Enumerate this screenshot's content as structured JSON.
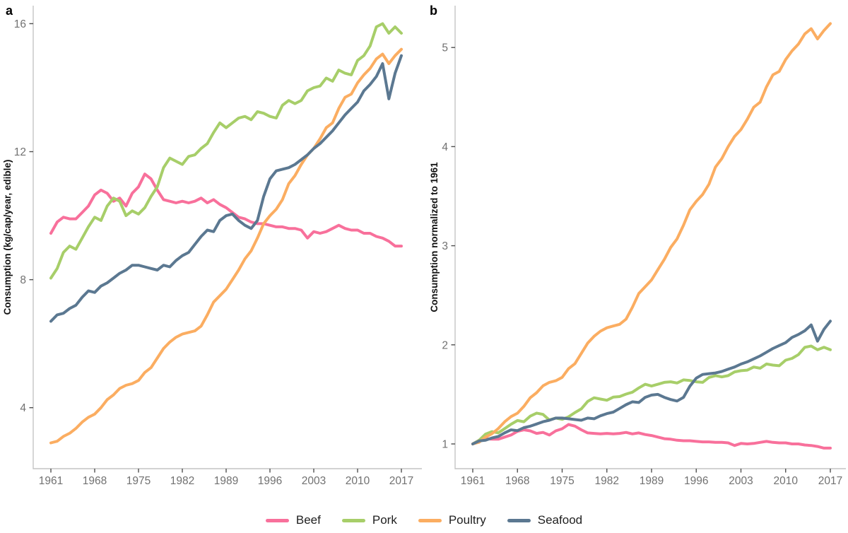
{
  "chart_data": [
    {
      "type": "line",
      "panel_label": "a",
      "title": "",
      "xlabel": "",
      "ylabel": "Consumption (kg/cap/year, edible)",
      "x": [
        1961,
        1962,
        1963,
        1964,
        1965,
        1966,
        1967,
        1968,
        1969,
        1970,
        1971,
        1972,
        1973,
        1974,
        1975,
        1976,
        1977,
        1978,
        1979,
        1980,
        1981,
        1982,
        1983,
        1984,
        1985,
        1986,
        1987,
        1988,
        1989,
        1990,
        1991,
        1992,
        1993,
        1994,
        1995,
        1996,
        1997,
        1998,
        1999,
        2000,
        2001,
        2002,
        2003,
        2004,
        2005,
        2006,
        2007,
        2008,
        2009,
        2010,
        2011,
        2012,
        2013,
        2014,
        2015,
        2016,
        2017
      ],
      "x_ticks": [
        1961,
        1968,
        1975,
        1982,
        1989,
        1996,
        2003,
        2010,
        2017
      ],
      "y_ticks": [
        4,
        8,
        12,
        16
      ],
      "ylim": [
        2.0,
        16.6
      ],
      "grid": false,
      "legend_position": "bottom",
      "series": [
        {
          "name": "Beef",
          "color": "#F8709B",
          "values": [
            9.45,
            9.8,
            9.95,
            9.9,
            9.9,
            10.1,
            10.3,
            10.65,
            10.8,
            10.7,
            10.45,
            10.55,
            10.3,
            10.7,
            10.9,
            11.3,
            11.15,
            10.8,
            10.5,
            10.45,
            10.4,
            10.45,
            10.4,
            10.45,
            10.55,
            10.4,
            10.5,
            10.35,
            10.25,
            10.1,
            9.95,
            9.9,
            9.8,
            9.75,
            9.75,
            9.7,
            9.65,
            9.65,
            9.6,
            9.6,
            9.55,
            9.3,
            9.5,
            9.45,
            9.5,
            9.6,
            9.7,
            9.6,
            9.55,
            9.55,
            9.45,
            9.45,
            9.35,
            9.3,
            9.2,
            9.05,
            9.05
          ]
        },
        {
          "name": "Pork",
          "color": "#A7CE69",
          "values": [
            8.05,
            8.35,
            8.85,
            9.05,
            8.95,
            9.3,
            9.65,
            9.95,
            9.85,
            10.3,
            10.55,
            10.45,
            10.0,
            10.15,
            10.05,
            10.25,
            10.6,
            10.9,
            11.5,
            11.8,
            11.7,
            11.6,
            11.85,
            11.9,
            12.1,
            12.25,
            12.6,
            12.9,
            12.75,
            12.9,
            13.05,
            13.1,
            13.0,
            13.25,
            13.2,
            13.1,
            13.05,
            13.45,
            13.6,
            13.5,
            13.6,
            13.9,
            14.0,
            14.05,
            14.3,
            14.2,
            14.55,
            14.45,
            14.4,
            14.85,
            15.0,
            15.3,
            15.9,
            16.0,
            15.7,
            15.9,
            15.7
          ]
        },
        {
          "name": "Poultry",
          "color": "#FBAD61",
          "values": [
            2.9,
            2.95,
            3.1,
            3.2,
            3.35,
            3.55,
            3.7,
            3.8,
            4.0,
            4.25,
            4.4,
            4.6,
            4.7,
            4.75,
            4.85,
            5.1,
            5.25,
            5.55,
            5.85,
            6.05,
            6.2,
            6.3,
            6.35,
            6.4,
            6.55,
            6.9,
            7.3,
            7.5,
            7.7,
            8.0,
            8.3,
            8.65,
            8.9,
            9.3,
            9.75,
            10.0,
            10.2,
            10.5,
            11.0,
            11.25,
            11.6,
            11.9,
            12.1,
            12.4,
            12.75,
            12.9,
            13.35,
            13.7,
            13.8,
            14.15,
            14.4,
            14.6,
            14.9,
            15.05,
            14.75,
            15.0,
            15.2
          ]
        },
        {
          "name": "Seafood",
          "color": "#5B7891",
          "values": [
            6.7,
            6.9,
            6.95,
            7.1,
            7.2,
            7.45,
            7.65,
            7.6,
            7.8,
            7.9,
            8.05,
            8.2,
            8.3,
            8.45,
            8.45,
            8.4,
            8.35,
            8.3,
            8.45,
            8.4,
            8.6,
            8.75,
            8.85,
            9.1,
            9.35,
            9.55,
            9.5,
            9.85,
            10.0,
            10.05,
            9.85,
            9.7,
            9.6,
            9.85,
            10.6,
            11.15,
            11.4,
            11.45,
            11.5,
            11.6,
            11.75,
            11.9,
            12.1,
            12.25,
            12.45,
            12.65,
            12.9,
            13.15,
            13.35,
            13.55,
            13.9,
            14.1,
            14.35,
            14.75,
            13.65,
            14.45,
            15.0
          ]
        }
      ]
    },
    {
      "type": "line",
      "panel_label": "b",
      "title": "",
      "xlabel": "",
      "ylabel": "Consumption normalized to 1961",
      "x": [
        1961,
        1962,
        1963,
        1964,
        1965,
        1966,
        1967,
        1968,
        1969,
        1970,
        1971,
        1972,
        1973,
        1974,
        1975,
        1976,
        1977,
        1978,
        1979,
        1980,
        1981,
        1982,
        1983,
        1984,
        1985,
        1986,
        1987,
        1988,
        1989,
        1990,
        1991,
        1992,
        1993,
        1994,
        1995,
        1996,
        1997,
        1998,
        1999,
        2000,
        2001,
        2002,
        2003,
        2004,
        2005,
        2006,
        2007,
        2008,
        2009,
        2010,
        2011,
        2012,
        2013,
        2014,
        2015,
        2016,
        2017
      ],
      "x_ticks": [
        1961,
        1968,
        1975,
        1982,
        1989,
        1996,
        2003,
        2010,
        2017
      ],
      "y_ticks": [
        1,
        2,
        3,
        4,
        5
      ],
      "ylim": [
        0.75,
        5.45
      ],
      "grid": false,
      "legend_position": "bottom",
      "series": [
        {
          "name": "Beef",
          "color": "#F8709B",
          "values": [
            1.0,
            1.037,
            1.053,
            1.048,
            1.048,
            1.069,
            1.09,
            1.127,
            1.143,
            1.132,
            1.106,
            1.116,
            1.09,
            1.132,
            1.153,
            1.196,
            1.18,
            1.143,
            1.111,
            1.106,
            1.101,
            1.106,
            1.101,
            1.106,
            1.116,
            1.101,
            1.111,
            1.095,
            1.085,
            1.069,
            1.053,
            1.048,
            1.037,
            1.032,
            1.032,
            1.026,
            1.021,
            1.021,
            1.016,
            1.016,
            1.011,
            0.984,
            1.005,
            1.0,
            1.005,
            1.016,
            1.026,
            1.016,
            1.011,
            1.011,
            1.0,
            1.0,
            0.989,
            0.984,
            0.974,
            0.958,
            0.958
          ]
        },
        {
          "name": "Pork",
          "color": "#A7CE69",
          "values": [
            1.0,
            1.037,
            1.099,
            1.124,
            1.112,
            1.155,
            1.199,
            1.236,
            1.224,
            1.28,
            1.311,
            1.298,
            1.242,
            1.261,
            1.248,
            1.273,
            1.317,
            1.354,
            1.429,
            1.466,
            1.453,
            1.441,
            1.472,
            1.478,
            1.503,
            1.522,
            1.565,
            1.602,
            1.584,
            1.602,
            1.621,
            1.627,
            1.615,
            1.646,
            1.64,
            1.627,
            1.621,
            1.671,
            1.689,
            1.677,
            1.689,
            1.727,
            1.739,
            1.745,
            1.776,
            1.764,
            1.807,
            1.795,
            1.789,
            1.845,
            1.863,
            1.901,
            1.975,
            1.988,
            1.95,
            1.975,
            1.95
          ]
        },
        {
          "name": "Poultry",
          "color": "#FBAD61",
          "values": [
            1.0,
            1.017,
            1.069,
            1.103,
            1.155,
            1.224,
            1.276,
            1.31,
            1.379,
            1.466,
            1.517,
            1.586,
            1.621,
            1.638,
            1.672,
            1.759,
            1.81,
            1.914,
            2.017,
            2.086,
            2.138,
            2.172,
            2.19,
            2.207,
            2.259,
            2.379,
            2.517,
            2.586,
            2.655,
            2.759,
            2.862,
            2.983,
            3.069,
            3.207,
            3.362,
            3.448,
            3.517,
            3.621,
            3.793,
            3.879,
            4.0,
            4.103,
            4.172,
            4.276,
            4.397,
            4.448,
            4.603,
            4.724,
            4.759,
            4.879,
            4.966,
            5.034,
            5.138,
            5.19,
            5.086,
            5.172,
            5.241
          ]
        },
        {
          "name": "Seafood",
          "color": "#5B7891",
          "values": [
            1.0,
            1.03,
            1.037,
            1.06,
            1.075,
            1.112,
            1.142,
            1.134,
            1.164,
            1.179,
            1.201,
            1.224,
            1.239,
            1.261,
            1.261,
            1.254,
            1.246,
            1.239,
            1.261,
            1.254,
            1.284,
            1.306,
            1.321,
            1.358,
            1.396,
            1.425,
            1.418,
            1.47,
            1.493,
            1.5,
            1.47,
            1.448,
            1.433,
            1.47,
            1.582,
            1.664,
            1.701,
            1.709,
            1.716,
            1.731,
            1.754,
            1.776,
            1.806,
            1.828,
            1.858,
            1.888,
            1.925,
            1.963,
            1.993,
            2.022,
            2.075,
            2.104,
            2.142,
            2.201,
            2.037,
            2.157,
            2.239
          ]
        }
      ]
    }
  ],
  "legend": {
    "position": "bottom",
    "items": [
      {
        "label": "Beef",
        "color": "#F8709B"
      },
      {
        "label": "Pork",
        "color": "#A7CE69"
      },
      {
        "label": "Poultry",
        "color": "#FBAD61"
      },
      {
        "label": "Seafood",
        "color": "#5B7891"
      }
    ]
  },
  "style": {
    "background": "#FFFFFF",
    "axis_line_color": "#C4C4C4",
    "tick_mark_color": "#4F4F4F",
    "tick_label_color": "#717171",
    "axis_title_color": "#111111",
    "panel_label_color": "#000000"
  }
}
